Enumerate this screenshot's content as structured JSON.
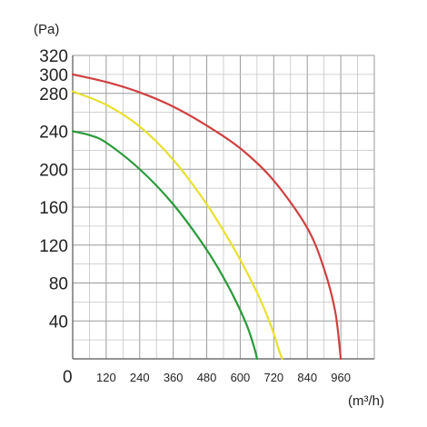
{
  "chart_data": {
    "type": "line",
    "y_unit": "(Pa)",
    "x_unit": "(m³/h)",
    "origin_label": "0",
    "x_ticks": [
      "120",
      "240",
      "360",
      "480",
      "600",
      "720",
      "840",
      "960"
    ],
    "y_ticks": [
      "40",
      "80",
      "120",
      "160",
      "200",
      "240",
      "280",
      "300",
      "320"
    ],
    "grid": true,
    "series": [
      {
        "color": "#d04040",
        "x": [
          0,
          120,
          240,
          360,
          480,
          600,
          720,
          840,
          900,
          940,
          960
        ],
        "y": [
          300,
          292,
          281,
          266,
          246,
          222,
          188,
          138,
          95,
          50,
          0
        ]
      },
      {
        "color": "#e8e030",
        "x": [
          0,
          120,
          240,
          360,
          480,
          580,
          660,
          710,
          740,
          750
        ],
        "y": [
          282,
          268,
          245,
          210,
          163,
          115,
          70,
          35,
          8,
          0
        ]
      },
      {
        "color": "#2a9a3a",
        "x": [
          0,
          60,
          120,
          240,
          360,
          480,
          560,
          620,
          650,
          660
        ],
        "y": [
          240,
          236,
          228,
          200,
          163,
          115,
          75,
          38,
          12,
          0
        ]
      }
    ]
  }
}
